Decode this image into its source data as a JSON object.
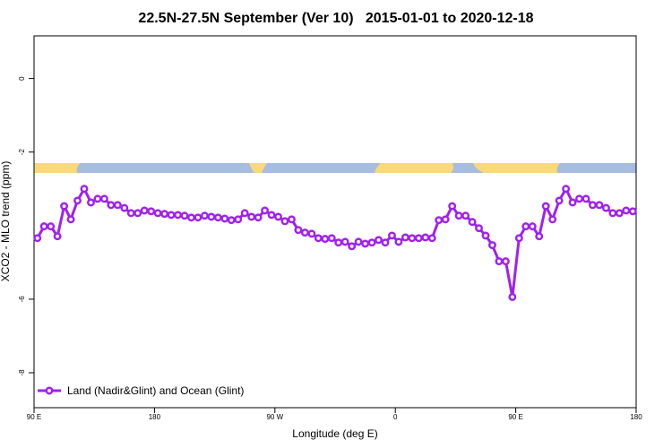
{
  "chart_data": {
    "type": "line",
    "title": "22.5N-27.5N September (Ver 10)   2015-01-01 to 2020-12-18",
    "x_label": "Longitude (deg E)",
    "y_label": "XCO2 - MLO trend (ppm)",
    "x": [
      92.5,
      97.5,
      102.5,
      107.5,
      112.5,
      117.5,
      122.5,
      127.5,
      132.5,
      137.5,
      142.5,
      147.5,
      152.5,
      157.5,
      162.5,
      167.5,
      172.5,
      177.5,
      182.5,
      187.5,
      192.5,
      197.5,
      202.5,
      207.5,
      212.5,
      217.5,
      222.5,
      227.5,
      232.5,
      237.5,
      242.5,
      247.5,
      252.5,
      257.5,
      262.5,
      267.5,
      272.5,
      277.5,
      282.5,
      287.5,
      292.5,
      297.5,
      302.5,
      307.5,
      312.5,
      317.5,
      322.5,
      327.5,
      332.5,
      337.5,
      342.5,
      347.5,
      352.5,
      357.5,
      362.5,
      367.5,
      372.5,
      377.5,
      382.5,
      387.5,
      392.5,
      397.5,
      402.5,
      407.5,
      412.5,
      417.5,
      422.5,
      427.5,
      432.5,
      437.5,
      442.5,
      447.5,
      452.5,
      457.5,
      462.5,
      467.5,
      472.5,
      477.5,
      482.5,
      487.5,
      492.5,
      497.5,
      502.5,
      507.5,
      512.5,
      517.5,
      522.5,
      527.5,
      532.5,
      537.5
    ],
    "series": [
      {
        "name": "Land (Nadir&Glint) and Ocean (Glint)",
        "color": "#a020f0",
        "values": [
          -4.34,
          -4.02,
          -4.02,
          -4.29,
          -3.47,
          -3.83,
          -3.32,
          -3.0,
          -3.37,
          -3.27,
          -3.27,
          -3.44,
          -3.44,
          -3.52,
          -3.66,
          -3.66,
          -3.59,
          -3.61,
          -3.66,
          -3.68,
          -3.71,
          -3.71,
          -3.73,
          -3.78,
          -3.78,
          -3.73,
          -3.76,
          -3.78,
          -3.81,
          -3.85,
          -3.83,
          -3.66,
          -3.76,
          -3.78,
          -3.59,
          -3.71,
          -3.76,
          -3.88,
          -3.83,
          -4.12,
          -4.19,
          -4.22,
          -4.34,
          -4.36,
          -4.34,
          -4.46,
          -4.44,
          -4.56,
          -4.44,
          -4.49,
          -4.46,
          -4.39,
          -4.46,
          -4.27,
          -4.44,
          -4.32,
          -4.34,
          -4.34,
          -4.32,
          -4.34,
          -3.85,
          -3.83,
          -3.47,
          -3.73,
          -3.73,
          -3.9,
          -4.07,
          -4.27,
          -4.53,
          -4.97,
          -4.97,
          -5.94,
          -4.34,
          -4.02,
          -4.02,
          -4.29,
          -3.47,
          -3.83,
          -3.32,
          -3.0,
          -3.37,
          -3.27,
          -3.27,
          -3.44,
          -3.44,
          -3.52,
          -3.66,
          -3.66,
          -3.59,
          -3.61
        ]
      }
    ],
    "xlim": [
      90,
      540
    ],
    "xticks": [
      {
        "value": 90,
        "label": "90 E"
      },
      180,
      {
        "value": 270,
        "label": "90 W"
      },
      {
        "value": 360,
        "label": "0"
      },
      {
        "value": 450,
        "label": "90 E"
      },
      {
        "value": 540,
        "label": "180"
      }
    ],
    "ylim": [
      -8.95,
      1.16
    ],
    "yticks": [
      0,
      -2,
      -6,
      -8
    ],
    "legend": "bottom-left"
  }
}
